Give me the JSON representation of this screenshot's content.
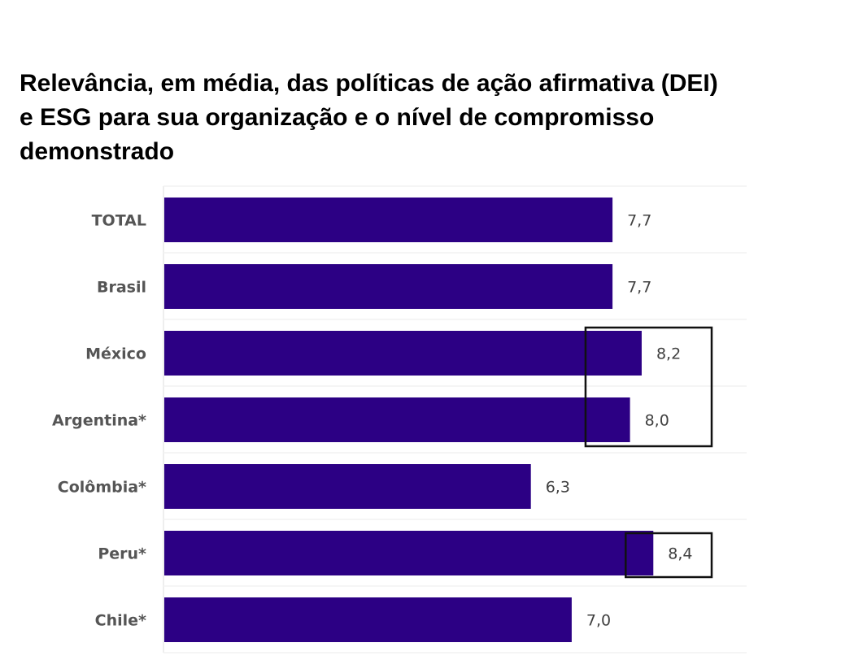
{
  "chart_data": {
    "type": "bar",
    "orientation": "horizontal",
    "title": "Relevância, em média, das políticas de ação afirmativa (DEI) e ESG para sua organização e o nível de compromisso demonstrado",
    "title_lines": [
      "Relevância, em média, das políticas de ação afirmativa (DEI)",
      "e ESG para sua organização e o nível de compromisso",
      "demonstrado"
    ],
    "categories": [
      "TOTAL",
      "Brasil",
      "México",
      "Argentina*",
      "Colômbia*",
      "Peru*",
      "Chile*"
    ],
    "values": [
      7.7,
      7.7,
      8.2,
      8.0,
      6.3,
      8.4,
      7.0
    ],
    "value_labels": [
      "7,7",
      "7,7",
      "8,2",
      "8,0",
      "6,3",
      "8,4",
      "7,0"
    ],
    "xlabel": "",
    "ylabel": "",
    "xlim": [
      0,
      10
    ],
    "grid": true,
    "legend": "none",
    "bar_color": "#2c0084",
    "highlights": [
      {
        "categories": [
          "México",
          "Argentina*"
        ],
        "style": "black outline box"
      },
      {
        "categories": [
          "Peru*"
        ],
        "style": "black outline box"
      }
    ]
  }
}
